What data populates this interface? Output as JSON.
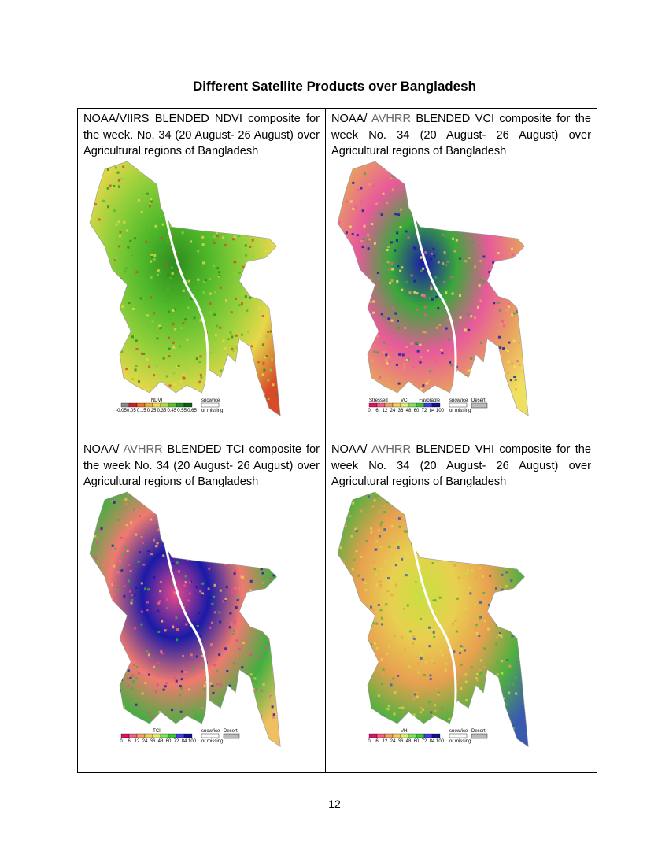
{
  "header": {
    "title": "Different Satellite Products over Bangladesh"
  },
  "panels": [
    {
      "caption": [
        "NOAA/VIIRS BLENDED NDVI composite for the week. No. 34 (20 August- 26 August) over Agricultural regions of Bangladesh"
      ],
      "map_colors": [
        "#2e8b1e",
        "#4fb82a",
        "#8fcf3a",
        "#e6d84a",
        "#d84a2a"
      ],
      "legend": {
        "title": "NDVI",
        "labels": [
          "-0.05",
          "0.05",
          "0.15",
          "0.25",
          "0.35",
          "0.45",
          "0.55",
          "0.65"
        ],
        "colors": [
          "#888888",
          "#d0202a",
          "#e87030",
          "#f0b030",
          "#f0e040",
          "#b0e040",
          "#60c030",
          "#209020",
          "#106010"
        ],
        "notes": [
          "snow/ice",
          "or missing"
        ]
      }
    },
    {
      "caption": [
        "NOAA/ ",
        "AVHRR",
        " BLENDED VCI composite for the week No. 34 (20 August- 26 August) over Agricultural regions of Bangladesh"
      ],
      "map_colors": [
        "#1a1aa8",
        "#3aa83a",
        "#e85a9a",
        "#e8a060",
        "#f0e060"
      ],
      "legend": {
        "title": "VCI",
        "tags": [
          "Stressed",
          "Favorable"
        ],
        "labels": [
          "0",
          "6",
          "12",
          "24",
          "36",
          "48",
          "60",
          "72",
          "84",
          "100"
        ],
        "colors": [
          "#e0106a",
          "#f06080",
          "#f0a060",
          "#f0d060",
          "#e0f070",
          "#80e060",
          "#40c040",
          "#4040e0",
          "#101090"
        ],
        "notes": [
          "snow/ice",
          "or missing",
          "Desert"
        ]
      }
    },
    {
      "caption": [
        "NOAA/ ",
        "AVHRR",
        " BLENDED TCI composite for the week No. 34 (20 August- 26 August) over Agricultural regions of Bangladesh"
      ],
      "map_colors": [
        "#e84a8a",
        "#1a1aa8",
        "#f07a70",
        "#40b040",
        "#f0c060"
      ],
      "legend": {
        "title": "TCI",
        "labels": [
          "0",
          "6",
          "12",
          "24",
          "36",
          "48",
          "60",
          "72",
          "84",
          "100"
        ],
        "colors": [
          "#e0106a",
          "#f06080",
          "#f0a060",
          "#f0d060",
          "#e0f070",
          "#80e060",
          "#40c040",
          "#4040e0",
          "#101090"
        ],
        "notes": [
          "snow/ice",
          "or missing",
          "Desert"
        ]
      }
    },
    {
      "caption": [
        "NOAA/ ",
        "AVHRR",
        " BLENDED VHI composite for the week No. 34 (20 August- 26 August) over Agricultural regions of Bangladesh"
      ],
      "map_colors": [
        "#c8e040",
        "#e8d050",
        "#e8a050",
        "#50b040",
        "#3a5ab0"
      ],
      "legend": {
        "title": "VHI",
        "labels": [
          "0",
          "6",
          "12",
          "24",
          "36",
          "48",
          "60",
          "72",
          "84",
          "100"
        ],
        "colors": [
          "#e0106a",
          "#f06080",
          "#f0a060",
          "#f0d060",
          "#e0f070",
          "#80e060",
          "#40c040",
          "#4040e0",
          "#101090"
        ],
        "notes": [
          "snow/ice",
          "or missing",
          "Desert"
        ]
      }
    }
  ],
  "footer": {
    "page_number": "12"
  }
}
